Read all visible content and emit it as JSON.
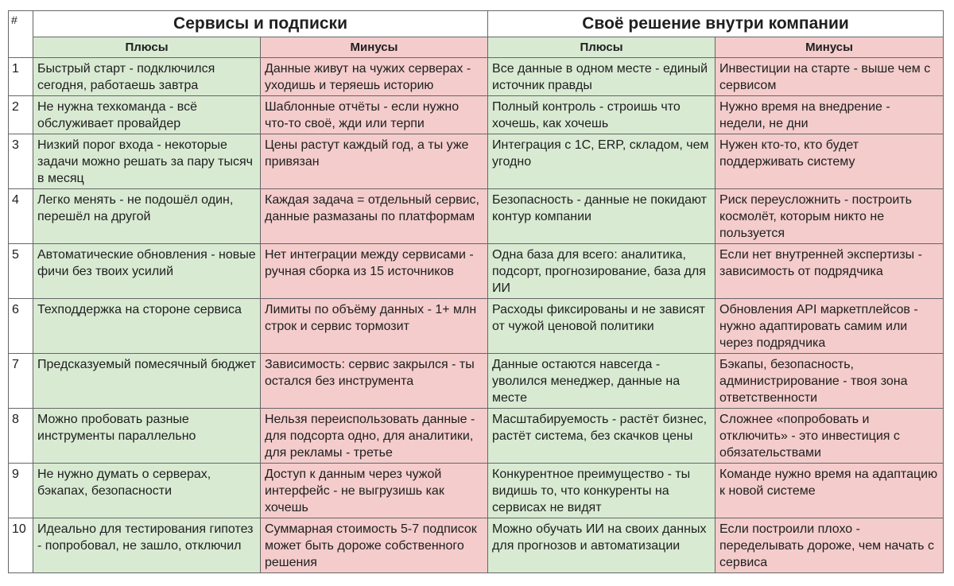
{
  "table": {
    "number_header": "#",
    "groups": [
      {
        "title": "Сервисы и подписки",
        "plus_label": "Плюсы",
        "minus_label": "Минусы"
      },
      {
        "title": "Своё решение внутри компании",
        "plus_label": "Плюсы",
        "minus_label": "Минусы"
      }
    ],
    "rows": [
      {
        "n": "1",
        "s_plus": "Быстрый старт - подключился сегодня, работаешь завтра",
        "s_minus": "Данные живут на чужих серверах - уходишь и теряешь историю",
        "o_plus": "Все данные в одном месте - единый источник правды",
        "o_minus": "Инвестиции на старте - выше чем с сервисом"
      },
      {
        "n": "2",
        "s_plus": "Не нужна техкоманда - всё обслуживает провайдер",
        "s_minus": "Шаблонные отчёты - если нужно что-то своё, жди или терпи",
        "o_plus": "Полный контроль - строишь что хочешь, как хочешь",
        "o_minus": "Нужно время на внедрение - недели, не дни"
      },
      {
        "n": "3",
        "s_plus": "Низкий порог входа - некоторые задачи можно решать за пару тысяч в месяц",
        "s_minus": "Цены растут каждый год, а ты уже привязан",
        "o_plus": "Интеграция с 1С, ERP, складом, чем угодно",
        "o_minus": "Нужен кто-то, кто будет поддерживать систему"
      },
      {
        "n": "4",
        "s_plus": "Легко менять - не подошёл один, перешёл на другой",
        "s_minus": "Каждая задача = отдельный сервис, данные размазаны по платформам",
        "o_plus": "Безопасность - данные не покидают контур компании",
        "o_minus": "Риск переусложнить - построить космолёт, которым никто не пользуется"
      },
      {
        "n": "5",
        "s_plus": "Автоматические обновления - новые фичи без твоих усилий",
        "s_minus": "Нет интеграции между сервисами - ручная сборка из 15 источников",
        "o_plus": "Одна база для всего: аналитика, подсорт, прогнозирование, база для ИИ",
        "o_minus": "Если нет внутренней экспертизы - зависимость от подрядчика"
      },
      {
        "n": "6",
        "s_plus": "Техподдержка на стороне сервиса",
        "s_minus": "Лимиты по объёму данных - 1+ млн строк и сервис тормозит",
        "o_plus": "Расходы фиксированы и не зависят от чужой ценовой политики",
        "o_minus": "Обновления API маркетплейсов - нужно адаптировать самим или через подрядчика"
      },
      {
        "n": "7",
        "s_plus": "Предсказуемый помесячный бюджет",
        "s_minus": "Зависимость: сервис закрылся - ты остался без инструмента",
        "o_plus": "Данные остаются навсегда - уволился менеджер, данные на месте",
        "o_minus": "Бэкапы, безопасность, администрирование - твоя зона ответственности"
      },
      {
        "n": "8",
        "s_plus": "Можно пробовать разные инструменты параллельно",
        "s_minus": "Нельзя переиспользовать данные - для подсорта одно, для аналитики, для рекламы - третье",
        "o_plus": "Масштабируемость - растёт бизнес, растёт система, без скачков цены",
        "o_minus": "Сложнее «попробовать и отключить» - это инвестиция с обязательствами"
      },
      {
        "n": "9",
        "s_plus": "Не нужно думать о серверах, бэкапах, безопасности",
        "s_minus": "Доступ к данным через чужой интерфейс - не выгрузишь как хочешь",
        "o_plus": "Конкурентное преимущество - ты видишь то, что конкуренты на сервисах не видят",
        "o_minus": "Команде нужно время на адаптацию к новой системе"
      },
      {
        "n": "10",
        "s_plus": "Идеально для тестирования гипотез - попробовал, не зашло, отключил",
        "s_minus": "Суммарная стоимость 5-7 подписок может быть дороже собственного решения",
        "o_plus": "Можно обучать ИИ на своих данных для прогнозов и автоматизации",
        "o_minus": "Если построили плохо - переделывать дороже, чем начать с сервиса"
      }
    ]
  }
}
